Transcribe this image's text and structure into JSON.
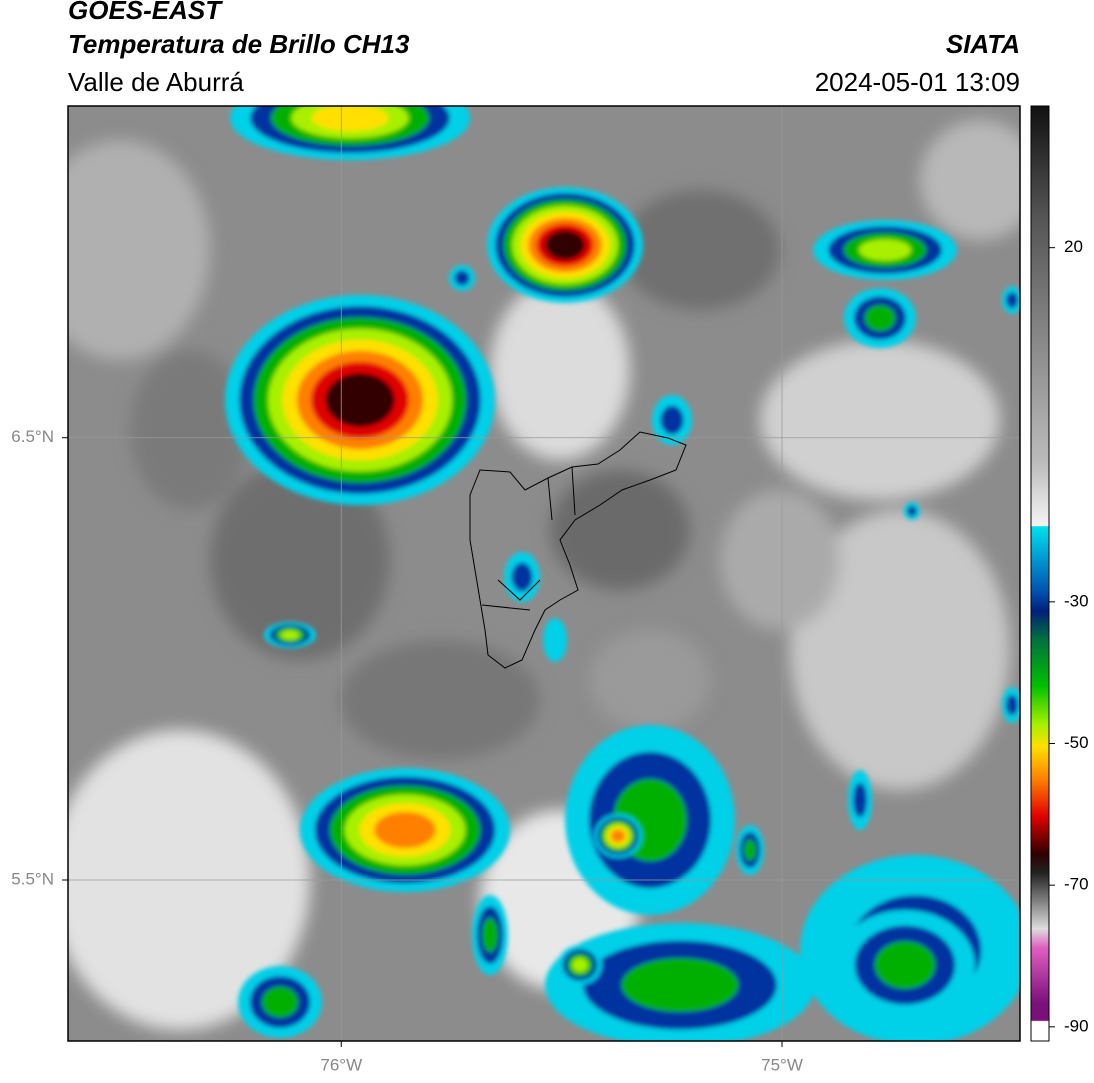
{
  "header": {
    "title": "GOES-EAST",
    "subtitle": "Temperatura de Brillo CH13",
    "region": "Valle de Aburrá",
    "source": "SIATA",
    "datetime": "2024-05-01 13:09"
  },
  "map": {
    "xlim": [
      -76.62,
      -74.46
    ],
    "ylim": [
      5.136,
      7.25
    ],
    "xticks": [
      {
        "value": -76,
        "label": "76°W"
      },
      {
        "value": -75,
        "label": "75°W"
      }
    ],
    "yticks": [
      {
        "value": 6.5,
        "label": "6.5°N"
      },
      {
        "value": 5.5,
        "label": "5.5°N"
      }
    ],
    "grid": true
  },
  "colorbar": {
    "lim": [
      -92,
      40
    ],
    "ticks": [
      20,
      -30,
      -50,
      -70,
      -90
    ]
  }
}
